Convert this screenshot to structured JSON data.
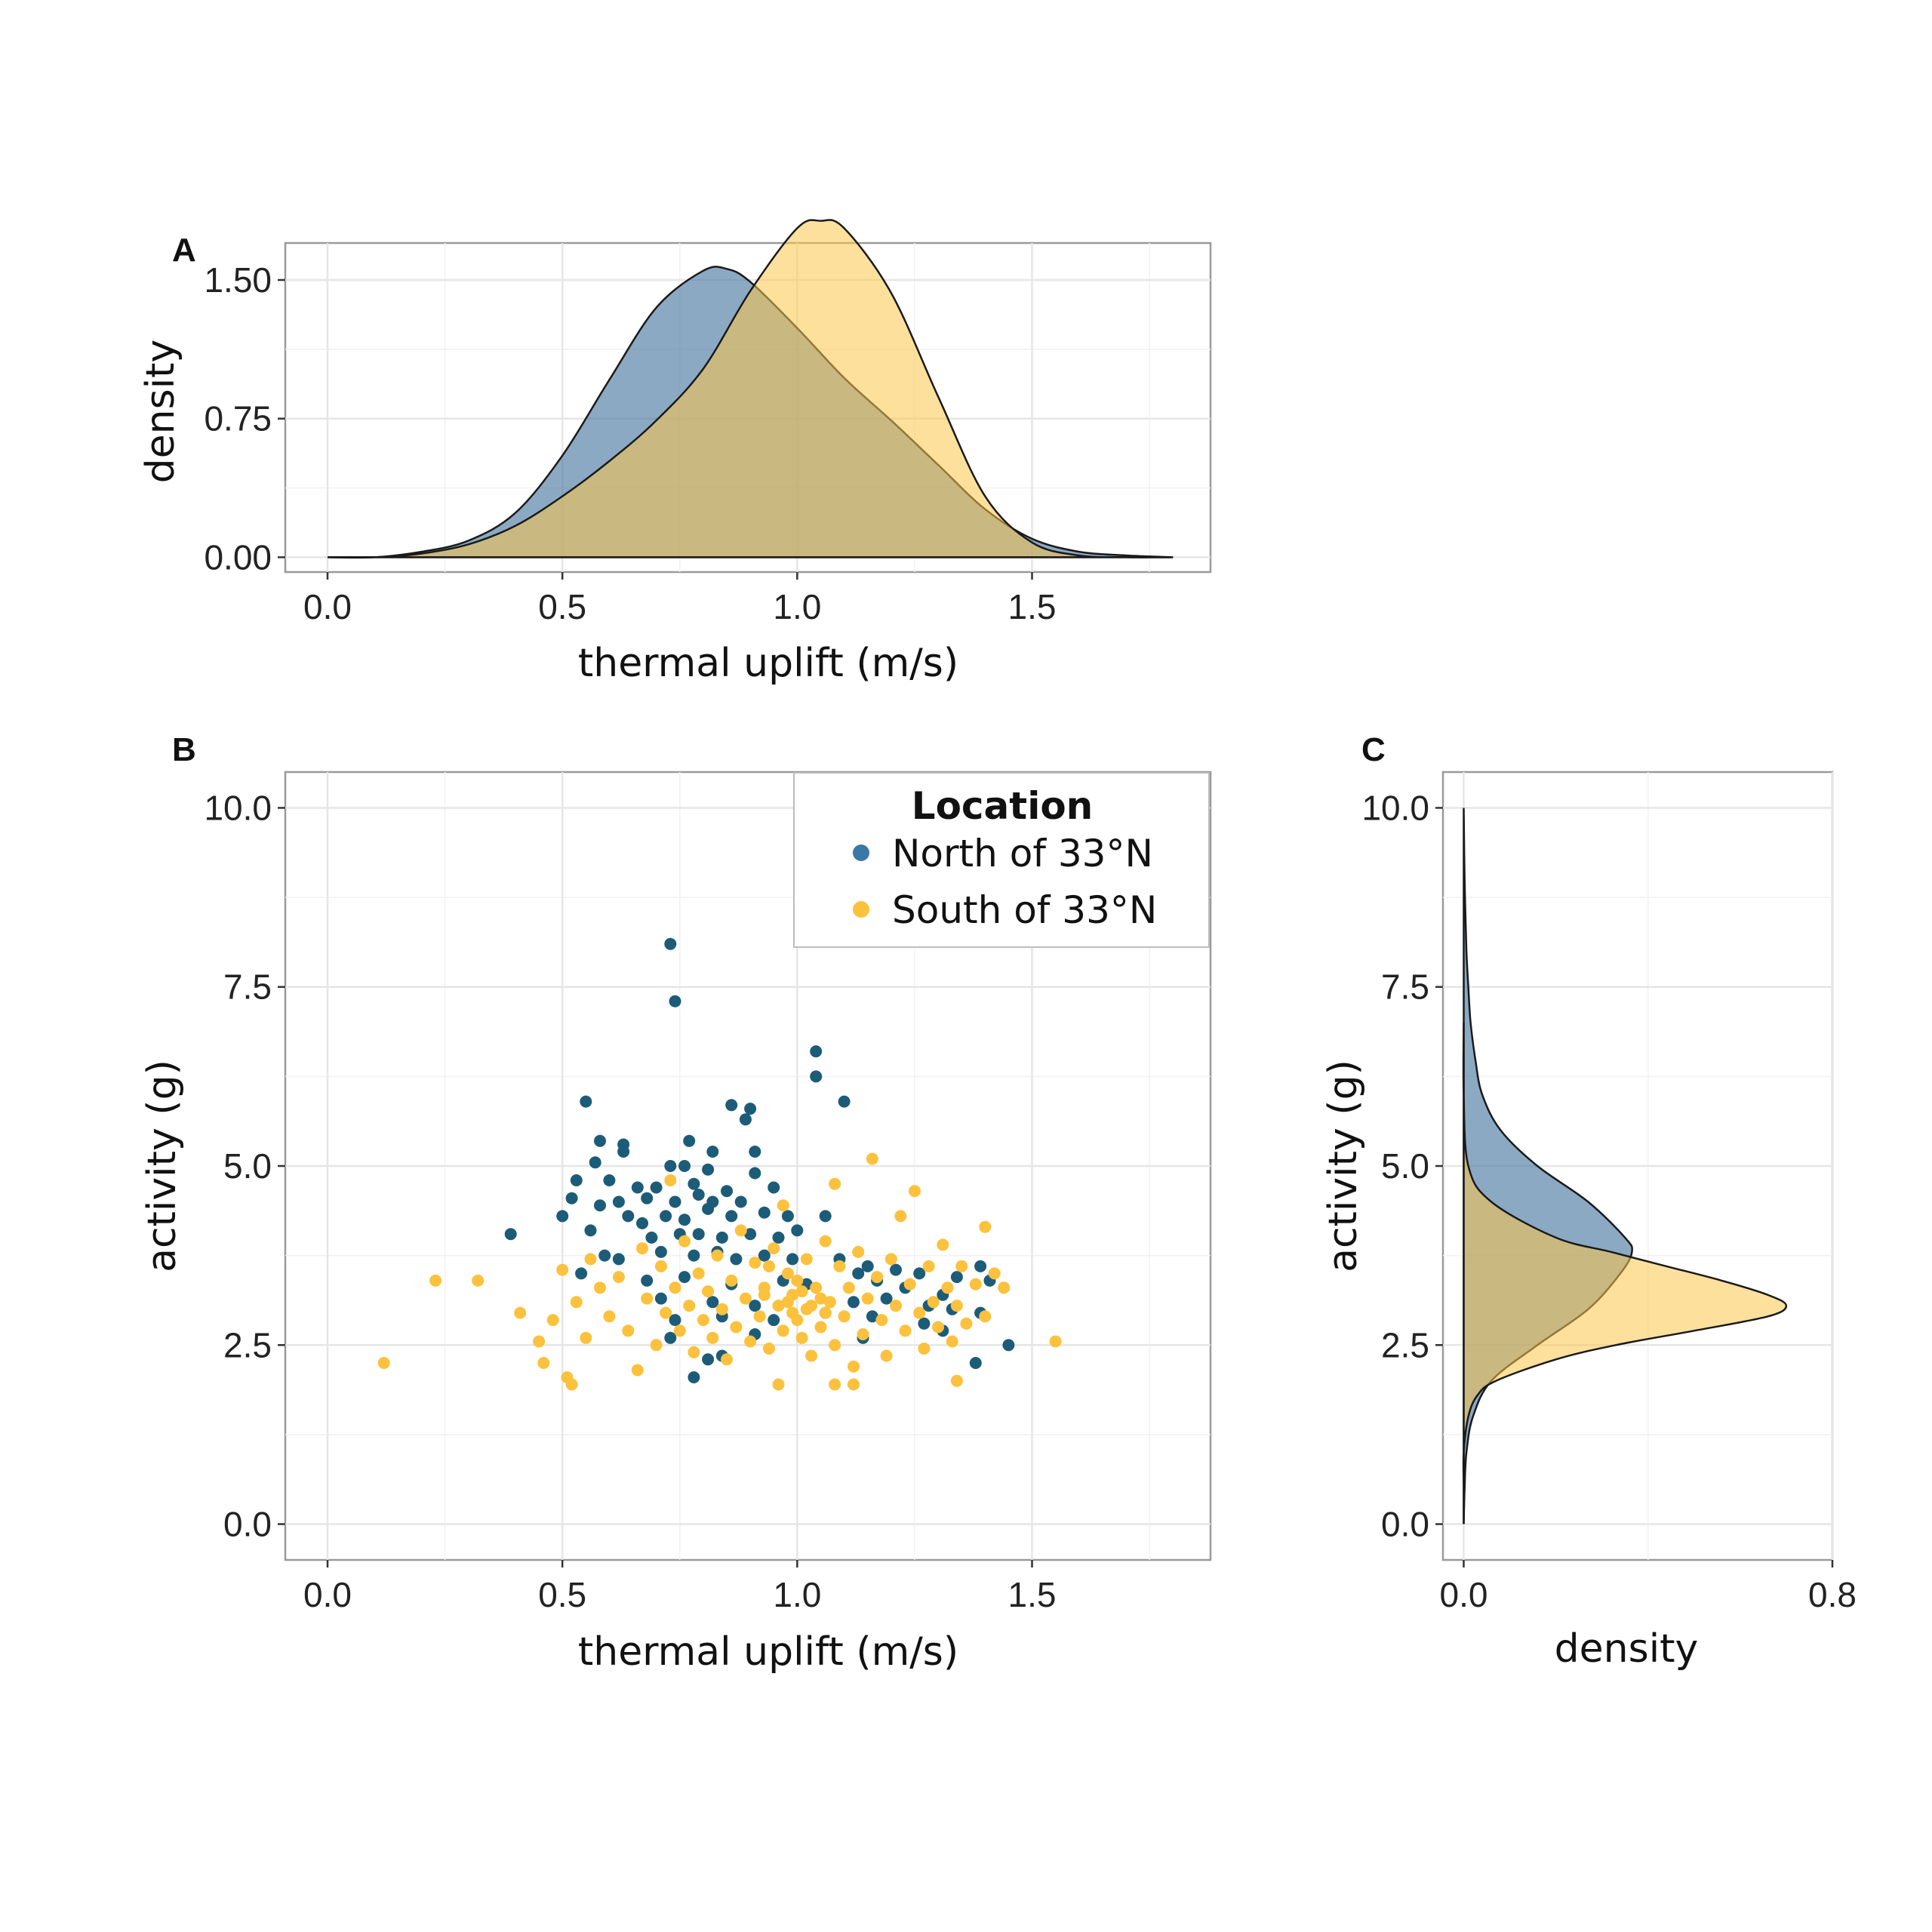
{
  "colors": {
    "north": "#45759e",
    "south": "#fcc64b",
    "north_point": "#1d5c78",
    "south_point": "#fcc13d",
    "outline": "#1a1a1a"
  },
  "legend": {
    "title": "Location",
    "placement": "top-right",
    "items": [
      "North of 33°N",
      "South of 33°N"
    ]
  },
  "chart_data": [
    {
      "panel": "A",
      "type": "area",
      "xlabel": "thermal uplift (m/s)",
      "ylabel": "density",
      "xlim": [
        -0.09,
        1.88
      ],
      "ylim": [
        -0.08,
        1.7
      ],
      "x_ticks": [
        0.0,
        0.5,
        1.0,
        1.5
      ],
      "x_tick_labels": [
        "0.0",
        "0.5",
        "1.0",
        "1.5"
      ],
      "y_ticks": [
        0.0,
        0.75,
        1.5
      ],
      "y_tick_labels": [
        "0.00",
        "0.75",
        "1.50"
      ],
      "grid": true,
      "series": [
        {
          "name": "North of 33°N",
          "x": [
            0.0,
            0.1,
            0.2,
            0.3,
            0.4,
            0.5,
            0.6,
            0.7,
            0.8,
            0.85,
            0.9,
            1.0,
            1.1,
            1.2,
            1.3,
            1.4,
            1.5,
            1.6,
            1.7,
            1.8
          ],
          "y": [
            0.0,
            0.0,
            0.03,
            0.09,
            0.24,
            0.55,
            0.96,
            1.35,
            1.55,
            1.56,
            1.49,
            1.24,
            0.97,
            0.74,
            0.5,
            0.26,
            0.1,
            0.03,
            0.01,
            0.0
          ]
        },
        {
          "name": "South of 33°N",
          "x": [
            0.0,
            0.1,
            0.2,
            0.3,
            0.4,
            0.5,
            0.6,
            0.7,
            0.8,
            0.9,
            1.0,
            1.05,
            1.1,
            1.2,
            1.3,
            1.4,
            1.5,
            1.6,
            1.7,
            1.8
          ],
          "y": [
            0.0,
            0.0,
            0.02,
            0.07,
            0.17,
            0.33,
            0.52,
            0.74,
            1.02,
            1.44,
            1.78,
            1.82,
            1.78,
            1.43,
            0.87,
            0.33,
            0.08,
            0.01,
            0.0,
            0.0
          ]
        }
      ]
    },
    {
      "panel": "B",
      "type": "scatter",
      "xlabel": "thermal uplift (m/s)",
      "ylabel": "activity (g)",
      "xlim": [
        -0.09,
        1.88
      ],
      "ylim": [
        -0.5,
        10.5
      ],
      "x_ticks": [
        0.0,
        0.5,
        1.0,
        1.5
      ],
      "x_tick_labels": [
        "0.0",
        "0.5",
        "1.0",
        "1.5"
      ],
      "y_ticks": [
        0.0,
        2.5,
        5.0,
        7.5,
        10.0
      ],
      "y_tick_labels": [
        "0.0",
        "2.5",
        "5.0",
        "7.5",
        "10.0"
      ],
      "grid": true,
      "series": [
        {
          "name": "North of 33°N",
          "points": [
            [
              0.73,
              8.1
            ],
            [
              0.74,
              7.3
            ],
            [
              1.04,
              6.6
            ],
            [
              1.04,
              6.25
            ],
            [
              1.1,
              5.9
            ],
            [
              0.55,
              5.9
            ],
            [
              0.86,
              5.85
            ],
            [
              0.9,
              5.8
            ],
            [
              0.89,
              5.65
            ],
            [
              0.58,
              5.35
            ],
            [
              0.63,
              5.3
            ],
            [
              0.77,
              5.35
            ],
            [
              0.82,
              5.2
            ],
            [
              0.91,
              5.2
            ],
            [
              0.63,
              5.2
            ],
            [
              0.57,
              5.05
            ],
            [
              0.73,
              5.0
            ],
            [
              0.76,
              5.0
            ],
            [
              0.81,
              4.95
            ],
            [
              0.91,
              4.9
            ],
            [
              0.53,
              4.8
            ],
            [
              0.6,
              4.8
            ],
            [
              0.66,
              4.7
            ],
            [
              0.7,
              4.7
            ],
            [
              0.78,
              4.75
            ],
            [
              0.85,
              4.65
            ],
            [
              0.95,
              4.7
            ],
            [
              0.52,
              4.55
            ],
            [
              0.58,
              4.45
            ],
            [
              0.62,
              4.5
            ],
            [
              0.68,
              4.55
            ],
            [
              0.74,
              4.5
            ],
            [
              0.79,
              4.6
            ],
            [
              0.82,
              4.5
            ],
            [
              0.88,
              4.5
            ],
            [
              0.5,
              4.3
            ],
            [
              0.64,
              4.3
            ],
            [
              0.67,
              4.2
            ],
            [
              0.72,
              4.3
            ],
            [
              0.76,
              4.25
            ],
            [
              0.81,
              4.4
            ],
            [
              0.86,
              4.3
            ],
            [
              0.93,
              4.35
            ],
            [
              0.98,
              4.3
            ],
            [
              1.06,
              4.3
            ],
            [
              0.39,
              4.05
            ],
            [
              0.56,
              4.1
            ],
            [
              0.69,
              4.0
            ],
            [
              0.75,
              4.05
            ],
            [
              0.79,
              4.05
            ],
            [
              0.84,
              4.0
            ],
            [
              0.9,
              4.05
            ],
            [
              0.96,
              4.0
            ],
            [
              1.0,
              4.1
            ],
            [
              0.59,
              3.75
            ],
            [
              0.62,
              3.7
            ],
            [
              0.71,
              3.8
            ],
            [
              0.78,
              3.75
            ],
            [
              0.83,
              3.8
            ],
            [
              0.87,
              3.7
            ],
            [
              0.93,
              3.75
            ],
            [
              0.99,
              3.7
            ],
            [
              1.09,
              3.7
            ],
            [
              1.15,
              3.6
            ],
            [
              1.13,
              3.5
            ],
            [
              1.21,
              3.55
            ],
            [
              1.26,
              3.5
            ],
            [
              1.34,
              3.45
            ],
            [
              1.39,
              3.6
            ],
            [
              1.41,
              3.4
            ],
            [
              0.54,
              3.5
            ],
            [
              0.68,
              3.4
            ],
            [
              0.76,
              3.45
            ],
            [
              0.86,
              3.35
            ],
            [
              0.97,
              3.4
            ],
            [
              1.02,
              3.35
            ],
            [
              1.17,
              3.4
            ],
            [
              1.23,
              3.3
            ],
            [
              1.31,
              3.2
            ],
            [
              0.71,
              3.15
            ],
            [
              0.82,
              3.1
            ],
            [
              0.91,
              3.05
            ],
            [
              1.12,
              3.1
            ],
            [
              1.19,
              3.15
            ],
            [
              1.28,
              3.05
            ],
            [
              1.33,
              3.0
            ],
            [
              0.74,
              2.85
            ],
            [
              0.84,
              2.9
            ],
            [
              0.95,
              2.85
            ],
            [
              1.06,
              2.95
            ],
            [
              1.16,
              2.9
            ],
            [
              1.27,
              2.8
            ],
            [
              1.39,
              2.95
            ],
            [
              0.73,
              2.6
            ],
            [
              0.91,
              2.65
            ],
            [
              1.14,
              2.6
            ],
            [
              1.31,
              2.7
            ],
            [
              1.45,
              2.5
            ],
            [
              0.81,
              2.3
            ],
            [
              0.84,
              2.35
            ],
            [
              0.78,
              2.05
            ],
            [
              1.38,
              2.25
            ]
          ]
        },
        {
          "name": "South of 33°N",
          "points": [
            [
              0.12,
              2.25
            ],
            [
              0.23,
              3.4
            ],
            [
              0.32,
              3.4
            ],
            [
              0.41,
              2.95
            ],
            [
              0.45,
              2.55
            ],
            [
              0.46,
              2.25
            ],
            [
              0.48,
              2.85
            ],
            [
              0.5,
              3.55
            ],
            [
              0.51,
              2.05
            ],
            [
              0.52,
              1.95
            ],
            [
              0.53,
              3.1
            ],
            [
              0.55,
              2.6
            ],
            [
              0.56,
              3.7
            ],
            [
              0.58,
              3.3
            ],
            [
              0.6,
              2.9
            ],
            [
              0.62,
              3.45
            ],
            [
              0.64,
              2.7
            ],
            [
              0.66,
              2.15
            ],
            [
              0.67,
              3.85
            ],
            [
              0.68,
              3.15
            ],
            [
              0.7,
              2.5
            ],
            [
              0.71,
              3.6
            ],
            [
              0.72,
              2.95
            ],
            [
              0.73,
              4.8
            ],
            [
              0.74,
              3.3
            ],
            [
              0.75,
              2.7
            ],
            [
              0.76,
              3.95
            ],
            [
              0.77,
              3.05
            ],
            [
              0.78,
              2.4
            ],
            [
              0.79,
              3.5
            ],
            [
              0.8,
              2.85
            ],
            [
              0.81,
              3.25
            ],
            [
              0.82,
              2.6
            ],
            [
              0.83,
              3.75
            ],
            [
              0.84,
              3.0
            ],
            [
              0.85,
              2.3
            ],
            [
              0.86,
              3.4
            ],
            [
              0.87,
              2.75
            ],
            [
              0.88,
              4.1
            ],
            [
              0.89,
              3.15
            ],
            [
              0.9,
              2.55
            ],
            [
              0.91,
              3.65
            ],
            [
              0.92,
              2.9
            ],
            [
              0.93,
              3.3
            ],
            [
              0.94,
              2.45
            ],
            [
              0.95,
              3.85
            ],
            [
              0.96,
              3.05
            ],
            [
              0.96,
              1.95
            ],
            [
              0.97,
              2.7
            ],
            [
              0.98,
              3.5
            ],
            [
              0.99,
              3.2
            ],
            [
              1.0,
              2.85
            ],
            [
              1.0,
              3.4
            ],
            [
              1.01,
              2.6
            ],
            [
              1.02,
              3.7
            ],
            [
              1.02,
              3.0
            ],
            [
              1.03,
              2.35
            ],
            [
              1.04,
              3.3
            ],
            [
              1.05,
              2.75
            ],
            [
              1.06,
              3.95
            ],
            [
              1.07,
              3.1
            ],
            [
              1.08,
              2.5
            ],
            [
              1.08,
              4.75
            ],
            [
              1.09,
              3.6
            ],
            [
              1.1,
              2.9
            ],
            [
              1.11,
              3.3
            ],
            [
              1.12,
              2.2
            ],
            [
              1.13,
              3.8
            ],
            [
              1.14,
              2.65
            ],
            [
              1.15,
              3.15
            ],
            [
              1.16,
              5.1
            ],
            [
              1.17,
              3.45
            ],
            [
              1.18,
              2.85
            ],
            [
              1.19,
              2.35
            ],
            [
              1.2,
              3.7
            ],
            [
              1.21,
              3.05
            ],
            [
              1.22,
              4.3
            ],
            [
              1.23,
              2.7
            ],
            [
              1.24,
              3.35
            ],
            [
              1.25,
              4.65
            ],
            [
              1.26,
              2.95
            ],
            [
              1.27,
              2.45
            ],
            [
              1.28,
              3.6
            ],
            [
              1.29,
              3.1
            ],
            [
              1.3,
              2.75
            ],
            [
              1.31,
              3.9
            ],
            [
              1.32,
              3.3
            ],
            [
              1.33,
              2.55
            ],
            [
              1.34,
              3.05
            ],
            [
              1.35,
              3.6
            ],
            [
              1.36,
              2.8
            ],
            [
              1.38,
              3.35
            ],
            [
              1.4,
              4.15
            ],
            [
              1.4,
              2.9
            ],
            [
              1.42,
              3.5
            ],
            [
              1.44,
              3.3
            ],
            [
              1.55,
              2.55
            ],
            [
              1.08,
              1.95
            ],
            [
              1.12,
              1.95
            ],
            [
              1.34,
              2.0
            ],
            [
              0.97,
              4.45
            ],
            [
              0.94,
              3.6
            ],
            [
              1.05,
              3.15
            ],
            [
              0.99,
              2.95
            ],
            [
              1.03,
              3.05
            ],
            [
              0.98,
              3.1
            ],
            [
              1.01,
              3.25
            ],
            [
              1.06,
              2.95
            ],
            [
              0.93,
              3.2
            ]
          ]
        }
      ]
    },
    {
      "panel": "C",
      "type": "area",
      "xlabel": "density",
      "ylabel": "activity (g)",
      "xlim": [
        -0.045,
        0.8
      ],
      "ylim": [
        -0.5,
        10.5
      ],
      "x_ticks": [
        0.0,
        0.8
      ],
      "x_tick_labels": [
        "0.0",
        "0.8"
      ],
      "y_ticks": [
        0.0,
        2.5,
        5.0,
        7.5,
        10.0
      ],
      "y_tick_labels": [
        "0.0",
        "2.5",
        "5.0",
        "7.5",
        "10.0"
      ],
      "grid": true,
      "orientation": "horizontal",
      "series": [
        {
          "name": "North of 33°N",
          "y": [
            0.0,
            0.5,
            1.0,
            1.5,
            2.0,
            2.5,
            3.0,
            3.5,
            3.8,
            4.0,
            4.5,
            5.0,
            5.5,
            6.0,
            6.5,
            7.0,
            7.5,
            8.0,
            9.0,
            10.0
          ],
          "x": [
            0.0,
            0.002,
            0.006,
            0.02,
            0.06,
            0.16,
            0.27,
            0.34,
            0.365,
            0.35,
            0.27,
            0.16,
            0.08,
            0.04,
            0.025,
            0.015,
            0.01,
            0.006,
            0.002,
            0.0
          ]
        },
        {
          "name": "South of 33°N",
          "y": [
            0.0,
            0.5,
            1.0,
            1.5,
            1.8,
            2.0,
            2.3,
            2.5,
            2.7,
            2.9,
            3.05,
            3.2,
            3.4,
            3.6,
            3.8,
            4.0,
            4.5,
            5.0,
            6.0,
            7.0
          ],
          "x": [
            0.0,
            0.0,
            0.0,
            0.01,
            0.03,
            0.07,
            0.2,
            0.33,
            0.5,
            0.66,
            0.7,
            0.66,
            0.56,
            0.44,
            0.32,
            0.2,
            0.06,
            0.01,
            0.0,
            0.0
          ]
        }
      ]
    }
  ]
}
